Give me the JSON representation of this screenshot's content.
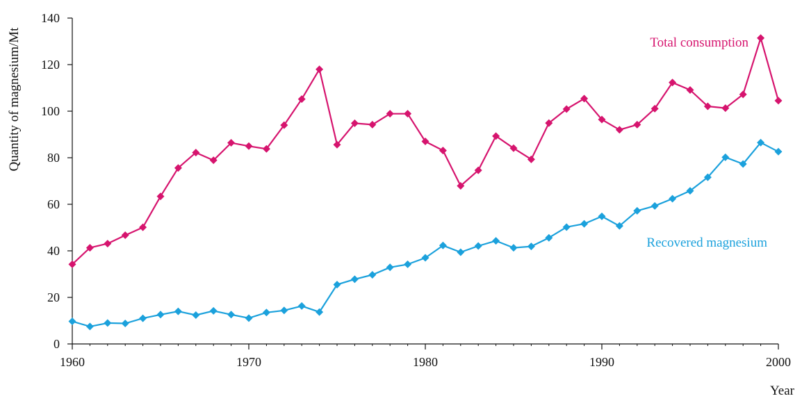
{
  "chart_data": {
    "type": "line",
    "title": "",
    "xlabel": "Year",
    "ylabel": "Quantity of magnesium/Mt",
    "xlim": [
      1960,
      2000
    ],
    "ylim": [
      0,
      140
    ],
    "xticks": [
      1960,
      1970,
      1980,
      1990,
      2000
    ],
    "yticks": [
      0,
      20,
      40,
      60,
      80,
      100,
      120,
      140
    ],
    "grid": false,
    "x": [
      1960,
      1961,
      1962,
      1963,
      1964,
      1965,
      1966,
      1967,
      1968,
      1969,
      1970,
      1971,
      1972,
      1973,
      1974,
      1975,
      1976,
      1977,
      1978,
      1979,
      1980,
      1981,
      1982,
      1983,
      1984,
      1985,
      1986,
      1987,
      1988,
      1989,
      1990,
      1991,
      1992,
      1993,
      1994,
      1995,
      1996,
      1997,
      1998,
      1999,
      2000
    ],
    "series": [
      {
        "name": "Total consumption",
        "color": "#d6146e",
        "marker": "diamond",
        "values": [
          34.2,
          41.3,
          43.1,
          46.7,
          50.1,
          63.4,
          75.6,
          82.2,
          78.9,
          86.4,
          85.0,
          83.8,
          94.0,
          105.2,
          118.0,
          85.6,
          94.8,
          94.2,
          98.9,
          98.9,
          87.0,
          83.1,
          67.9,
          74.6,
          89.3,
          84.1,
          79.3,
          94.9,
          100.9,
          105.4,
          96.4,
          92.0,
          94.2,
          101.1,
          112.3,
          109.1,
          102.1,
          101.3,
          107.2,
          131.4,
          104.5
        ]
      },
      {
        "name": "Recovered magnesium",
        "color": "#1ba1dc",
        "marker": "diamond",
        "values": [
          9.7,
          7.5,
          9.0,
          8.8,
          11.0,
          12.6,
          14.0,
          12.4,
          14.2,
          12.6,
          11.1,
          13.5,
          14.4,
          16.3,
          13.7,
          25.5,
          27.8,
          29.7,
          32.9,
          34.2,
          37.0,
          42.3,
          39.4,
          42.1,
          44.3,
          41.3,
          41.9,
          45.6,
          50.2,
          51.6,
          54.8,
          50.7,
          57.2,
          59.3,
          62.4,
          65.8,
          71.6,
          80.2,
          77.3,
          86.5,
          82.6
        ]
      }
    ]
  }
}
